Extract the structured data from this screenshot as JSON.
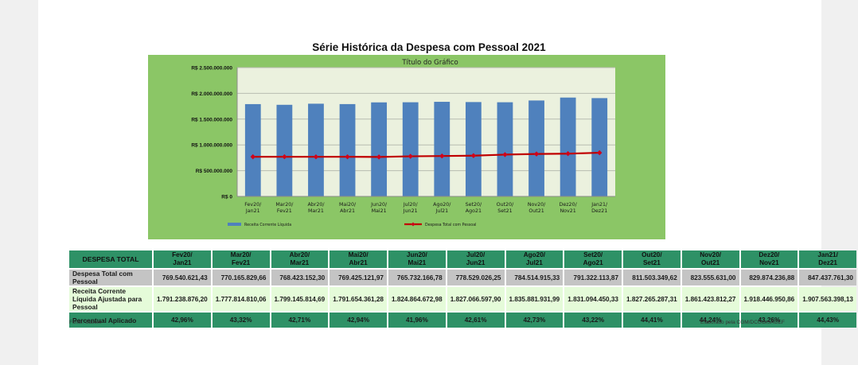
{
  "page": {
    "title": "Série Histórica da Despesa com Pessoal 2021",
    "source_note": "Fonte: Siafem",
    "credit_note": "Elaborado pela CGM/DCGO/SAGEF"
  },
  "colors": {
    "chart_background": "#8bc666",
    "plot_background": "#ebf1de",
    "bar": "#4f81bd",
    "line": "#c00000",
    "marker": "#d0021b",
    "table_header": "#2e9166",
    "row_despesa": "#c4c4c4",
    "row_rcl": "#e5fbd9"
  },
  "chart_data": {
    "type": "bar",
    "title": "Título do Gráfico",
    "xlabel": "",
    "ylabel": "",
    "ylim": [
      0,
      2500000000
    ],
    "yticks": [
      0,
      500000000,
      1000000000,
      1500000000,
      2000000000,
      2500000000
    ],
    "ytick_labels": [
      "R$ 0",
      "R$ 500.000.000",
      "R$ 1.000.000.000",
      "R$ 1.500.000.000",
      "R$ 2.000.000.000",
      "R$ 2.500.000.000"
    ],
    "grid": true,
    "legend_position": "bottom",
    "categories": [
      [
        "Fev20/",
        "Jan21"
      ],
      [
        "Mar20/",
        "Fev21"
      ],
      [
        "Abr20/",
        "Mar21"
      ],
      [
        "Mai20/",
        "Abr21"
      ],
      [
        "Jun20/",
        "Mai21"
      ],
      [
        "Jul20/",
        "Jun21"
      ],
      [
        "Ago20/",
        "Jul21"
      ],
      [
        "Set20/",
        "Ago21"
      ],
      [
        "Out20/",
        "Set21"
      ],
      [
        "Nov20/",
        "Out21"
      ],
      [
        "Dez20/",
        "Nov21"
      ],
      [
        "Jan21/",
        "Dez21"
      ]
    ],
    "series": [
      {
        "name": "Receita Corrente Líquida",
        "type": "bar",
        "values": [
          1791238876.2,
          1777814810.06,
          1799145814.69,
          1791654361.28,
          1824864672.98,
          1827066597.9,
          1835881931.99,
          1831094450.33,
          1827265287.31,
          1861423812.27,
          1918446950.86,
          1907563398.13
        ]
      },
      {
        "name": "Despesa Total com Pessoal",
        "type": "line",
        "values": [
          769540621.43,
          770165829.66,
          768423152.3,
          769425121.97,
          765732166.78,
          778529026.25,
          784514915.33,
          791322113.87,
          811503349.62,
          823555631.0,
          829874236.88,
          847437761.3
        ]
      }
    ]
  },
  "table": {
    "header_label": "DESPESA TOTAL",
    "columns": [
      [
        "Fev20/",
        "Jan21"
      ],
      [
        "Mar20/",
        "Fev21"
      ],
      [
        "Abr20/",
        "Mar21"
      ],
      [
        "Mai20/",
        "Abr21"
      ],
      [
        "Jun20/",
        "Mai21"
      ],
      [
        "Jul20/",
        "Jun21"
      ],
      [
        "Ago20/",
        "Jul21"
      ],
      [
        "Set20/",
        "Ago21"
      ],
      [
        "Out20/",
        "Set21"
      ],
      [
        "Nov20/",
        "Out21"
      ],
      [
        "Dez20/",
        "Nov21"
      ],
      [
        "Jan21/",
        "Dez21"
      ]
    ],
    "rows": [
      {
        "label": "Despesa Total com Pessoal",
        "values": [
          "769.540.621,43",
          "770.165.829,66",
          "768.423.152,30",
          "769.425.121,97",
          "765.732.166,78",
          "778.529.026,25",
          "784.514.915,33",
          "791.322.113,87",
          "811.503.349,62",
          "823.555.631,00",
          "829.874.236,88",
          "847.437.761,30"
        ]
      },
      {
        "label": "Receita Corrente Líquida Ajustada para Pessoal",
        "values": [
          "1.791.238.876,20",
          "1.777.814.810,06",
          "1.799.145.814,69",
          "1.791.654.361,28",
          "1.824.864.672,98",
          "1.827.066.597,90",
          "1.835.881.931,99",
          "1.831.094.450,33",
          "1.827.265.287,31",
          "1.861.423.812,27",
          "1.918.446.950,86",
          "1.907.563.398,13"
        ]
      },
      {
        "label": "Percentual Aplicado",
        "values": [
          "42,96%",
          "43,32%",
          "42,71%",
          "42,94%",
          "41,96%",
          "42,61%",
          "42,73%",
          "43,22%",
          "44,41%",
          "44,24%",
          "43,26%",
          "44,43%"
        ]
      }
    ]
  }
}
